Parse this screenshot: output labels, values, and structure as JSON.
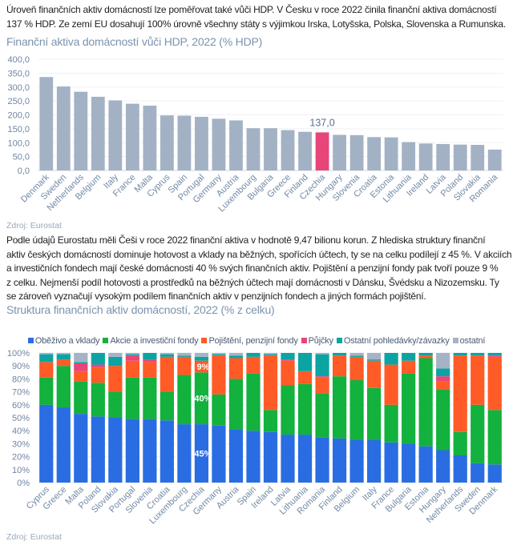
{
  "intro": {
    "lines": [
      "Úroveň finančních aktiv domácností lze poměřovat také vůči HDP. V Česku v roce 2022 činila finanční aktiva domácností",
      "137 % HDP. Ze zemí EU dosahují 100% úrovně všechny státy s výjimkou Irska, Lotyšska, Polska, Slovenska a Rumunska."
    ]
  },
  "source1": "Zdroj: Eurostat",
  "middle": {
    "lines": [
      "Podle údajů Eurostatu měli Češi v roce 2022 finanční aktiva v hodnotě 9,47 bilionu korun. Z hlediska struktury finanční",
      "aktiv českých domácností dominuje hotovost a vklady na běžných, spořících účtech, ty se na celku podílejí z 45 %. V akciích",
      "a investičních fondech mají české domácnosti 40 % svých finančních aktiv. Pojištění a penzijní fondy pak tvoří pouze 9 %",
      "z celku. Nejmenší podíl hotovosti a prostředků na běžných účtech mají domácnosti v Dánsku, Švédsku a Nizozemsku. Ty",
      "se zároveň vyznačují vysokým podílem finančních aktiv v penzijních fondech a jiných formách pojištění."
    ]
  },
  "source2": "Zdroj: Eurostat",
  "chart_data": [
    {
      "type": "bar",
      "title": "Finanční aktiva domácností vůči HDP, 2022 (% HDP)",
      "categories": [
        "Denmark",
        "Sweden",
        "Netherlands",
        "Belgium",
        "Italy",
        "France",
        "Malta",
        "Cyprus",
        "Spain",
        "Portugal",
        "Germany",
        "Austria",
        "Luxembourg",
        "Bulgaria",
        "Greece",
        "Finland",
        "Czechia",
        "Hungary",
        "Slovenia",
        "Croatia",
        "Estonia",
        "Lithuania",
        "Ireland",
        "Latvia",
        "Poland",
        "Slovakia",
        "Romania"
      ],
      "values": [
        336,
        302,
        283,
        265,
        252,
        240,
        233,
        198,
        197,
        193,
        186,
        180,
        152,
        152,
        145,
        139,
        137,
        128,
        127,
        120,
        119,
        102,
        97,
        95,
        93,
        92,
        75
      ],
      "highlight": "Czechia",
      "data_labels": [
        {
          "category": "Czechia",
          "text": "137,0"
        }
      ],
      "yticks": [
        "0,0",
        "50,0",
        "100,0",
        "150,0",
        "200,0",
        "250,0",
        "300,0",
        "350,0",
        "400,0"
      ],
      "ylim": [
        0,
        400
      ],
      "grid": true,
      "colors": {
        "bar": "#a3b1c4",
        "highlight": "#e8457a"
      }
    },
    {
      "type": "bar",
      "stacked": true,
      "title": "Struktura finančních aktiv domácností, 2022 (% z celku)",
      "categories": [
        "Cyprus",
        "Greece",
        "Malta",
        "Poland",
        "Slovakia",
        "Portugal",
        "Slovenia",
        "Croatia",
        "Luxembourg",
        "Czechia",
        "Germany",
        "Austria",
        "Spain",
        "Ireland",
        "Latvia",
        "Lithuania",
        "Romania",
        "Finland",
        "Belgium",
        "Italy",
        "France",
        "Bulgaria",
        "Estonia",
        "Hungary",
        "Netherlands",
        "Sweden",
        "Denmark"
      ],
      "series": [
        {
          "name": "Oběživo a vklady",
          "color": "#2a6de3",
          "values": [
            60,
            58,
            53,
            51,
            50,
            49,
            49,
            48,
            45,
            45,
            44,
            41,
            40,
            39,
            37,
            37,
            35,
            34,
            33,
            33,
            31,
            30,
            28,
            25,
            21,
            15,
            14
          ]
        },
        {
          "name": "Akcie a investiční fondy",
          "color": "#13b13d",
          "values": [
            21,
            32,
            25,
            26,
            20,
            32,
            32,
            22,
            38,
            40,
            24,
            39,
            44,
            17,
            38,
            39,
            34,
            48,
            46,
            40,
            29,
            54,
            68,
            47,
            18,
            45,
            42
          ]
        },
        {
          "name": "Pojištění, penzijní fondy",
          "color": "#ff5b26",
          "values": [
            12,
            5,
            8,
            12,
            20,
            13,
            12,
            27,
            14,
            9,
            30,
            16,
            13,
            42,
            19,
            10,
            12,
            16,
            18,
            21,
            31,
            10,
            2,
            6,
            59,
            38,
            41
          ]
        },
        {
          "name": "Půjčky",
          "color": "#e8457a",
          "values": [
            0,
            0,
            6,
            2,
            0,
            4,
            2,
            0,
            0,
            0,
            0,
            0,
            0,
            0,
            1,
            0,
            1,
            0,
            0,
            0,
            0,
            0,
            0,
            4,
            0,
            0,
            1
          ]
        },
        {
          "name": "Ostatní pohledávky/závazky",
          "color": "#0ca4a2",
          "values": [
            6,
            4,
            1,
            9,
            7,
            1,
            5,
            2,
            1,
            3,
            1,
            2,
            3,
            1,
            5,
            14,
            17,
            2,
            1,
            1,
            9,
            6,
            2,
            6,
            2,
            2,
            2
          ]
        },
        {
          "name": "ostatní",
          "color": "#a5b3c7",
          "values": [
            1,
            1,
            7,
            0,
            3,
            1,
            0,
            1,
            2,
            3,
            1,
            2,
            0,
            1,
            0,
            0,
            1,
            0,
            2,
            5,
            0,
            0,
            0,
            12,
            0,
            0,
            0
          ]
        }
      ],
      "annotations": [
        {
          "category": "Czechia",
          "series": "Pojištění, penzijní fondy",
          "text": "9%"
        },
        {
          "category": "Czechia",
          "series": "Akcie a investiční fondy",
          "text": "40%"
        },
        {
          "category": "Czechia",
          "series": "Oběživo a vklady",
          "text": "45%"
        }
      ],
      "yticks": [
        "0%",
        "10%",
        "20%",
        "30%",
        "40%",
        "50%",
        "60%",
        "70%",
        "80%",
        "90%",
        "100%"
      ],
      "ylim": [
        0,
        100
      ],
      "grid": true,
      "legend": "top"
    }
  ]
}
